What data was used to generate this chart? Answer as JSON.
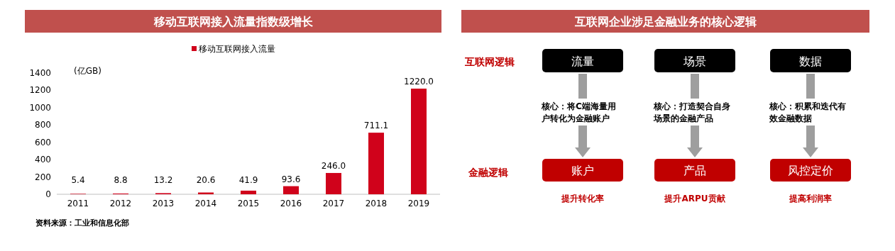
{
  "chart_data": [
    {
      "type": "bar",
      "title": "移动互联网接入流量指数级增长",
      "ylabel": "(亿GB)",
      "categories": [
        "2011",
        "2012",
        "2013",
        "2014",
        "2015",
        "2016",
        "2017",
        "2018",
        "2019"
      ],
      "series": [
        {
          "name": "移动互联网接入流量",
          "color": "#d0021b",
          "values": [
            5.4,
            8.8,
            13.2,
            20.6,
            41.9,
            93.6,
            246.0,
            711.1,
            1220.0
          ]
        }
      ],
      "value_labels": [
        "5.4",
        "8.8",
        "13.2",
        "20.6",
        "41.9",
        "93.6",
        "246.0",
        "711.1",
        "1220.0"
      ],
      "ylim": [
        0,
        1400
      ],
      "yticks": [
        0,
        200,
        400,
        600,
        800,
        1000,
        1200,
        1400
      ],
      "legend": "top",
      "grid": false,
      "annotations": [
        "资料来源：工业和信息化部"
      ]
    },
    {
      "type": "other",
      "title": "互联网企业涉足金融业务的核心逻辑",
      "annotations": [
        "互联网逻辑",
        "金融逻辑",
        "流量",
        "核心：将C端海量用户转化为金融账户",
        "账户",
        "提升转化率",
        "场景",
        "核心：打造契合自身场景的金融产品",
        "产品",
        "提升ARPU贡献",
        "数据",
        "核心：积累和迭代有效金融数据",
        "风控定价",
        "提高利润率"
      ]
    }
  ]
}
